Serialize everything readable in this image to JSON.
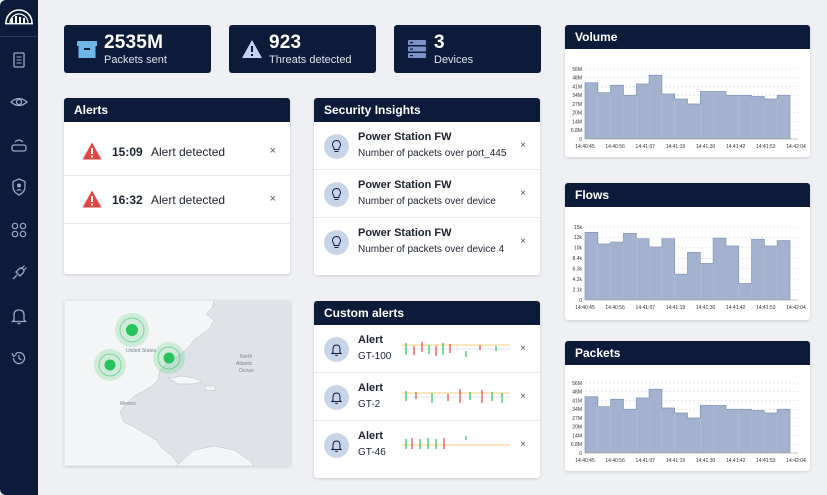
{
  "stats": [
    {
      "value": "2535M",
      "label": "Packets sent",
      "icon": "package-icon"
    },
    {
      "value": "923",
      "label": "Threats detected",
      "icon": "warning-icon"
    },
    {
      "value": "3",
      "label": "Devices",
      "icon": "server-icon"
    }
  ],
  "alerts": {
    "title": "Alerts",
    "items": [
      {
        "time": "15:09",
        "text": "Alert detected",
        "close": "×"
      },
      {
        "time": "16:32",
        "text": "Alert detected",
        "close": "×"
      }
    ]
  },
  "insights": {
    "title": "Security Insights",
    "items": [
      {
        "title": "Power Station FW",
        "text": "Number of packets over port_445",
        "close": "×"
      },
      {
        "title": "Power Station FW",
        "text": "Number of packets over device",
        "close": "×"
      },
      {
        "title": "Power Station FW",
        "text": "Number of packets over device 4",
        "close": "×"
      }
    ]
  },
  "custom_alerts": {
    "title": "Custom alerts",
    "items": [
      {
        "title": "Alert",
        "id": "GT-100",
        "close": "×"
      },
      {
        "title": "Alert",
        "id": "GT-2",
        "close": "×"
      },
      {
        "title": "Alert",
        "id": "GT-46",
        "close": "×"
      }
    ]
  },
  "map": {
    "labels": [
      "United States",
      "North",
      "Atlantic",
      "Ocean",
      "Mexico"
    ]
  },
  "colors": {
    "navy": "#0d1b3a",
    "bar": "#8d9fc0",
    "alert_red": "#e04646",
    "green": "#27c25c"
  },
  "chart_data": [
    {
      "type": "bar",
      "title": "Volume",
      "x_ticks": [
        "14:40:45",
        "14:40:56",
        "14:41:07",
        "14:41:19",
        "14:41:30",
        "14:41:42",
        "14:41:53",
        "14:42:04"
      ],
      "y_ticks": [
        "0",
        "6.8M",
        "14M",
        "20M",
        "27M",
        "34M",
        "41M",
        "48M",
        "56M"
      ],
      "ylim": [
        0,
        56
      ],
      "values": [
        45,
        37,
        43,
        35,
        44,
        51,
        36,
        32,
        28,
        38,
        38,
        35,
        35,
        34,
        32,
        35
      ],
      "grid": true
    },
    {
      "type": "bar",
      "title": "Flows",
      "x_ticks": [
        "14:40:45",
        "14:40:56",
        "14:41:07",
        "14:41:19",
        "14:41:30",
        "14:41:42",
        "14:41:53",
        "14:42:04"
      ],
      "y_ticks": [
        "0",
        "2.1k",
        "4.2k",
        "6.3k",
        "8.4k",
        "10k",
        "13k",
        "15k"
      ],
      "ylim": [
        0,
        15
      ],
      "values": [
        13.9,
        11.5,
        11.9,
        13.7,
        12.6,
        10.9,
        12.6,
        5.3,
        9.8,
        7.5,
        12.7,
        11.1,
        3.4,
        12.5,
        11.1,
        12.2
      ],
      "grid": true
    },
    {
      "type": "bar",
      "title": "Packets",
      "x_ticks": [
        "14:40:45",
        "14:40:56",
        "14:41:07",
        "14:41:19",
        "14:41:30",
        "14:41:42",
        "14:41:53",
        "14:42:04"
      ],
      "y_ticks": [
        "0",
        "6.8M",
        "14M",
        "20M",
        "27M",
        "34M",
        "41M",
        "48M",
        "56M"
      ],
      "ylim": [
        0,
        56
      ],
      "values": [
        45,
        37,
        43,
        35,
        44,
        51,
        36,
        32,
        28,
        38,
        38,
        35,
        35,
        34,
        32,
        35
      ],
      "grid": true
    }
  ]
}
